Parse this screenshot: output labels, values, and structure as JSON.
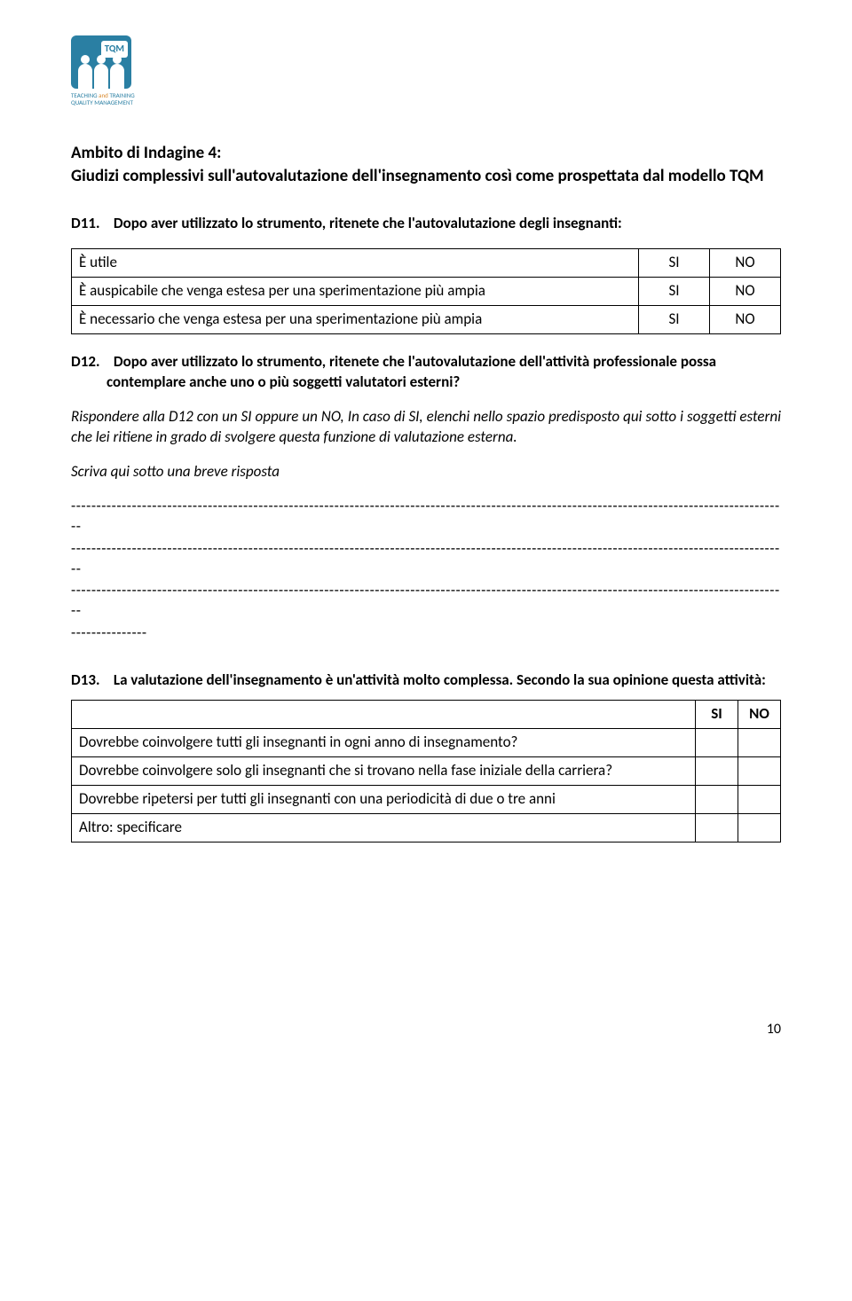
{
  "logo": {
    "badge_text": "TQM",
    "line1a": "TEACHING ",
    "line1b": "and",
    "line1c": " TRAINING",
    "line2": "QUALITY MANAGEMENT"
  },
  "section": {
    "title": "Ambito di Indagine 4:",
    "subtitle": "Giudizi complessivi sull'autovalutazione dell'insegnamento così come prospettata dal modello TQM"
  },
  "d11": {
    "label": "D11.",
    "text": "Dopo aver utilizzato lo strumento, ritenete che l'autovalutazione degli insegnanti:",
    "rows": [
      {
        "text": "È utile",
        "si": "SI",
        "no": "NO"
      },
      {
        "text": "È auspicabile che venga estesa per una sperimentazione più ampia",
        "si": "SI",
        "no": "NO"
      },
      {
        "text": "È necessario che venga estesa per una sperimentazione più ampia",
        "si": "SI",
        "no": "NO"
      }
    ]
  },
  "d12": {
    "label": "D12.",
    "text": "Dopo aver utilizzato lo strumento, ritenete che l'autovalutazione dell'attività professionale possa contemplare anche uno o più soggetti valutatori esterni?",
    "instr": "Rispondere alla D12 con un SI oppure un NO, In caso di SI, elenchi nello spazio predisposto qui sotto i soggetti esterni che lei ritiene in grado di svolgere questa funzione di valutazione esterna.",
    "instr2": "Scriva qui sotto una breve risposta"
  },
  "d13": {
    "label": "D13.",
    "text": "La valutazione dell'insegnamento è un'attività molto complessa. Secondo la sua opinione questa attività:",
    "header_si": "SI",
    "header_no": "NO",
    "rows": [
      "Dovrebbe coinvolgere tutti gli insegnanti in ogni anno di insegnamento?",
      "Dovrebbe coinvolgere solo gli insegnanti che si trovano nella fase iniziale della carriera?",
      "Dovrebbe ripetersi per tutti gli insegnanti con una periodicità di due o tre anni",
      "Altro: specificare"
    ]
  },
  "dash_line": "----------------------------------------------------------------------------------------------------------------------------------------------",
  "dash_short": "---------------",
  "page": "10"
}
